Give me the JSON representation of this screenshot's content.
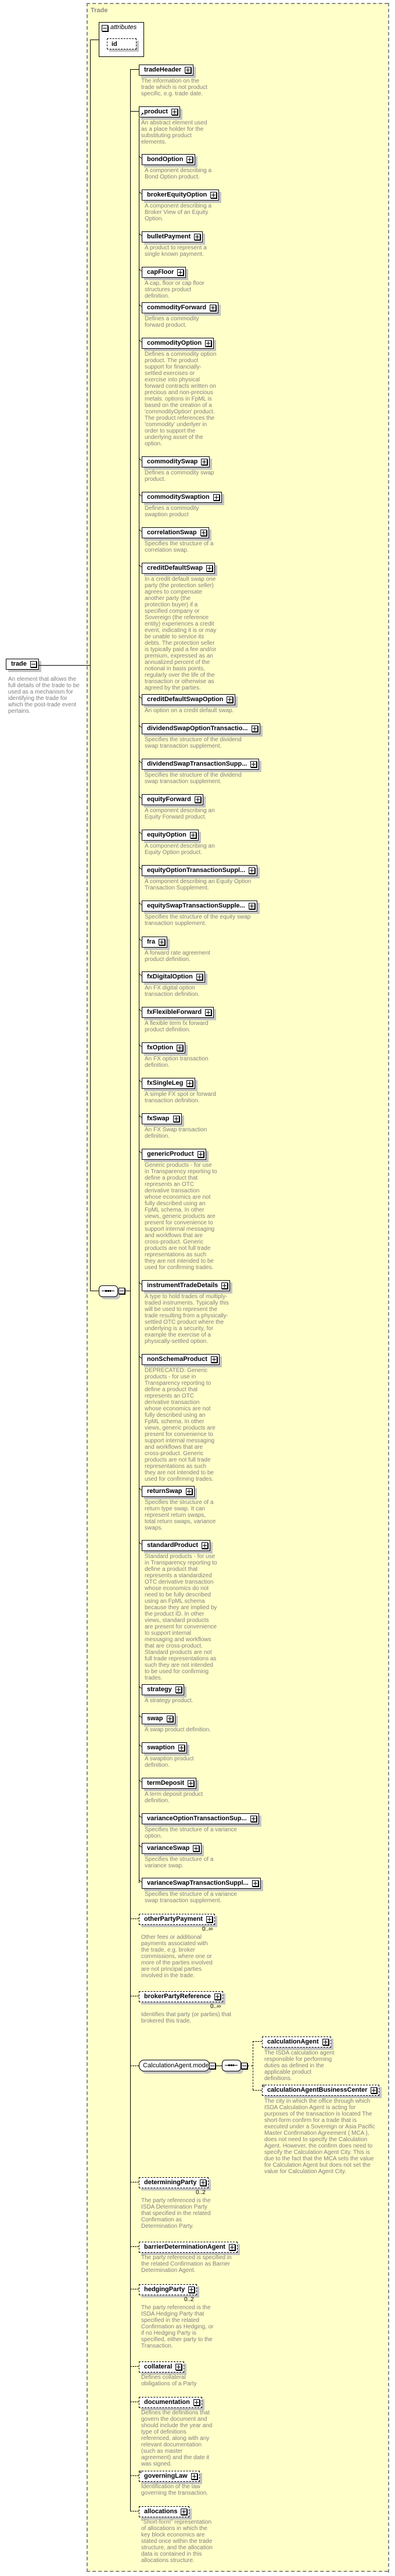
{
  "root": {
    "name": "trade",
    "desc": "An element that allows the full details of the trade to be used as a mechanism for identifying the trade for which the post-trade event pertains."
  },
  "type_name": "Trade",
  "attributes": {
    "label": "attributes",
    "items": [
      "id"
    ]
  },
  "tradeHeader": {
    "name": "tradeHeader",
    "desc": "The information on the trade which is not product specific, e.g. trade date."
  },
  "product": {
    "name": "product",
    "desc": "An abstract element used as a place holder for the substituting product elements."
  },
  "products": [
    {
      "name": "bondOption",
      "desc": "A component describing a Bond Option product."
    },
    {
      "name": "brokerEquityOption",
      "desc": "A component describing a Broker View of an Equity Option."
    },
    {
      "name": "bulletPayment",
      "desc": "A product to represent a single known payment."
    },
    {
      "name": "capFloor",
      "desc": "A cap, floor or cap floor structures product definition."
    },
    {
      "name": "commodityForward",
      "desc": "Defines a commodity forward product."
    },
    {
      "name": "commodityOption",
      "desc": "Defines a commodity option product. The product support for financially-settled exercises or exercise into physical forward contracts written on precious and non-precious metals. options in FpML is based on the creation of a 'commodityOption' product. The product references the 'commodity' underlyer in order to support the underlying asset of the option."
    },
    {
      "name": "commoditySwap",
      "desc": "Defines a commodity swap product."
    },
    {
      "name": "commoditySwaption",
      "desc": "Defines a commodity swaption product"
    },
    {
      "name": "correlationSwap",
      "desc": "Specifies the structure of a correlation swap."
    },
    {
      "name": "creditDefaultSwap",
      "desc": "In a credit default swap one party (the protection seller) agrees to compensate another party (the protection buyer) if a specified company or Sovereign (the reference entity) experiences a credit event, indicating it is or may be unable to service its debts. The protection seller is typically paid a fee and/or premium, expressed as an annualized percent of the notional in basis points, regularly over the life of the transaction or otherwise as agreed by the parties."
    },
    {
      "name": "creditDefaultSwapOption",
      "desc": "An option on a credit default swap."
    },
    {
      "name": "dividendSwapOptionTransactio...",
      "desc": "Specifies the structure of the dividend swap transaction supplement."
    },
    {
      "name": "dividendSwapTransactionSupp...",
      "desc": "Specifies the structure of the dividend swap transaction supplement."
    },
    {
      "name": "equityForward",
      "desc": "A component describing an Equity Forward product."
    },
    {
      "name": "equityOption",
      "desc": "A component describing an Equity Option product."
    },
    {
      "name": "equityOptionTransactionSuppl...",
      "desc": "A component describing an Equity Option Transaction Supplement."
    },
    {
      "name": "equitySwapTransactionSupple...",
      "desc": "Specifies the structure of the equity swap transaction supplement."
    },
    {
      "name": "fra",
      "desc": "A forward rate agreement product definition."
    },
    {
      "name": "fxDigitalOption",
      "desc": "An FX digital option transaction definition."
    },
    {
      "name": "fxFlexibleForward",
      "desc": "A flexible term fx forward product definition."
    },
    {
      "name": "fxOption",
      "desc": "An FX option transaction definition."
    },
    {
      "name": "fxSingleLeg",
      "desc": "A simple FX spot or forward transaction definition."
    },
    {
      "name": "fxSwap",
      "desc": "An FX Swap transaction definition."
    },
    {
      "name": "genericProduct",
      "desc": "Generic products - for use in Transparency reporting to define a product that represents an OTC derivative transaction whose economics are not fully described using an FpML schema. In other views, generic products are present for convenience to support internal messaging and workflows that are cross-product. Generic products are not full trade representations as such they are not intended to be used for confirming trades."
    },
    {
      "name": "instrumentTradeDetails",
      "desc": "A type to hold trades of multiply-traded instruments. Typically this will be used to represent the trade resulting from a physically-settled OTC product where the underlying is a security, for example the exercise of a physically-settled option."
    },
    {
      "name": "nonSchemaProduct",
      "desc": "DEPRECATED: Generic products - for use in Transparency reporting to define a product that represents an OTC derivative transaction whose economics are not fully described using an FpML schema. In other views, generic products are present for convenience to support internal messaging and workflows that are cross-product. Generic products are not full trade representations as such they are not intended to be used for confirming trades."
    },
    {
      "name": "returnSwap",
      "desc": "Specifies the structure of a return type swap. It can represent return swaps, total return swaps, variance swaps."
    },
    {
      "name": "standardProduct",
      "desc": "Standard products - for use in Transparency reporting to define a product that represents a standardized OTC derivative transaction whose economics do not need to be fully described using an FpML schema because they are implied by the product ID. In other views, standard products are present for convenience to support internal messaging and workflows that are cross-product. Standard products are not full trade representations as such they are not intended to be used for confirming trades."
    },
    {
      "name": "strategy",
      "desc": "A strategy product."
    },
    {
      "name": "swap",
      "desc": "A swap product definition."
    },
    {
      "name": "swaption",
      "desc": "A swaption product definition."
    },
    {
      "name": "termDeposit",
      "desc": "A term deposit product definition."
    },
    {
      "name": "varianceOptionTransactionSup...",
      "desc": "Specifies the structure of a variance option."
    },
    {
      "name": "varianceSwap",
      "desc": "Specifies the structure of a variance swap."
    },
    {
      "name": "varianceSwapTransactionSuppl...",
      "desc": "Specifies the structure of a variance swap transaction supplement."
    }
  ],
  "optional": [
    {
      "name": "otherPartyPayment",
      "occurs": "0..∞",
      "desc": "Other fees or additional payments associated with the trade, e.g. broker commissions, where one or more of the parties involved are not principal parties involved in the trade."
    },
    {
      "name": "brokerPartyReference",
      "occurs": "0..∞",
      "desc": "Identifies that party (or parties) that brokered this trade."
    },
    {
      "name": "determiningParty",
      "occurs": "0..2",
      "desc": "The party referenced is the ISDA Determination Party that specified in the related Confirmation as Determination Party."
    },
    {
      "name": "barrierDeterminationAgent",
      "desc": "The party referenced is specified in the related Confirmation as Barrier Determination Agent."
    },
    {
      "name": "hedgingParty",
      "occurs": "0..2",
      "desc": "The party referenced is the ISDA Hedging Party that specified in the related Confirmation as Hedging, or if no Hedging Party is specified, either party to the Transaction."
    },
    {
      "name": "collateral",
      "desc": "Defines collateral obiligations of a Party"
    },
    {
      "name": "documentation",
      "desc": "Defines the definitions that govern the document and should include the year and type of definitions referenced, along with any relevant documentation (such as master agreement) and the date it was signed."
    },
    {
      "name": "governingLaw",
      "desc": "Identification of the law governing the transaction."
    },
    {
      "name": "allocations",
      "desc": "\"Short-form\" representation of allocations in which the key block economics are stated once within the trade structure, and the allocation data is contained in this allocations structure."
    }
  ],
  "calc_model": {
    "name": "CalculationAgent.model",
    "children": [
      {
        "name": "calculationAgent",
        "desc": "The ISDA calculation agent responsible for performing duties as defined in the applicable product definitions."
      },
      {
        "name": "calculationAgentBusinessCenter",
        "desc": "The city in which the office through which ISDA Calculation Agent is acting for purposes of the transaction is located The short-form confirm for a trade that is executed under a Sovereign or Asia Pacific Master Confirmation Agreement ( MCA ), does not need to specify the Calculation Agent. However, the confirm does need to specify the Calculation Agent City. This is due to the fact that the MCA sets the value for Calculation Agent but does not set the value for Calculation Agent City."
      }
    ]
  },
  "colors": {
    "background": "#ffffc9",
    "description_text": "#808080",
    "shadow": "#c4c4c4"
  }
}
